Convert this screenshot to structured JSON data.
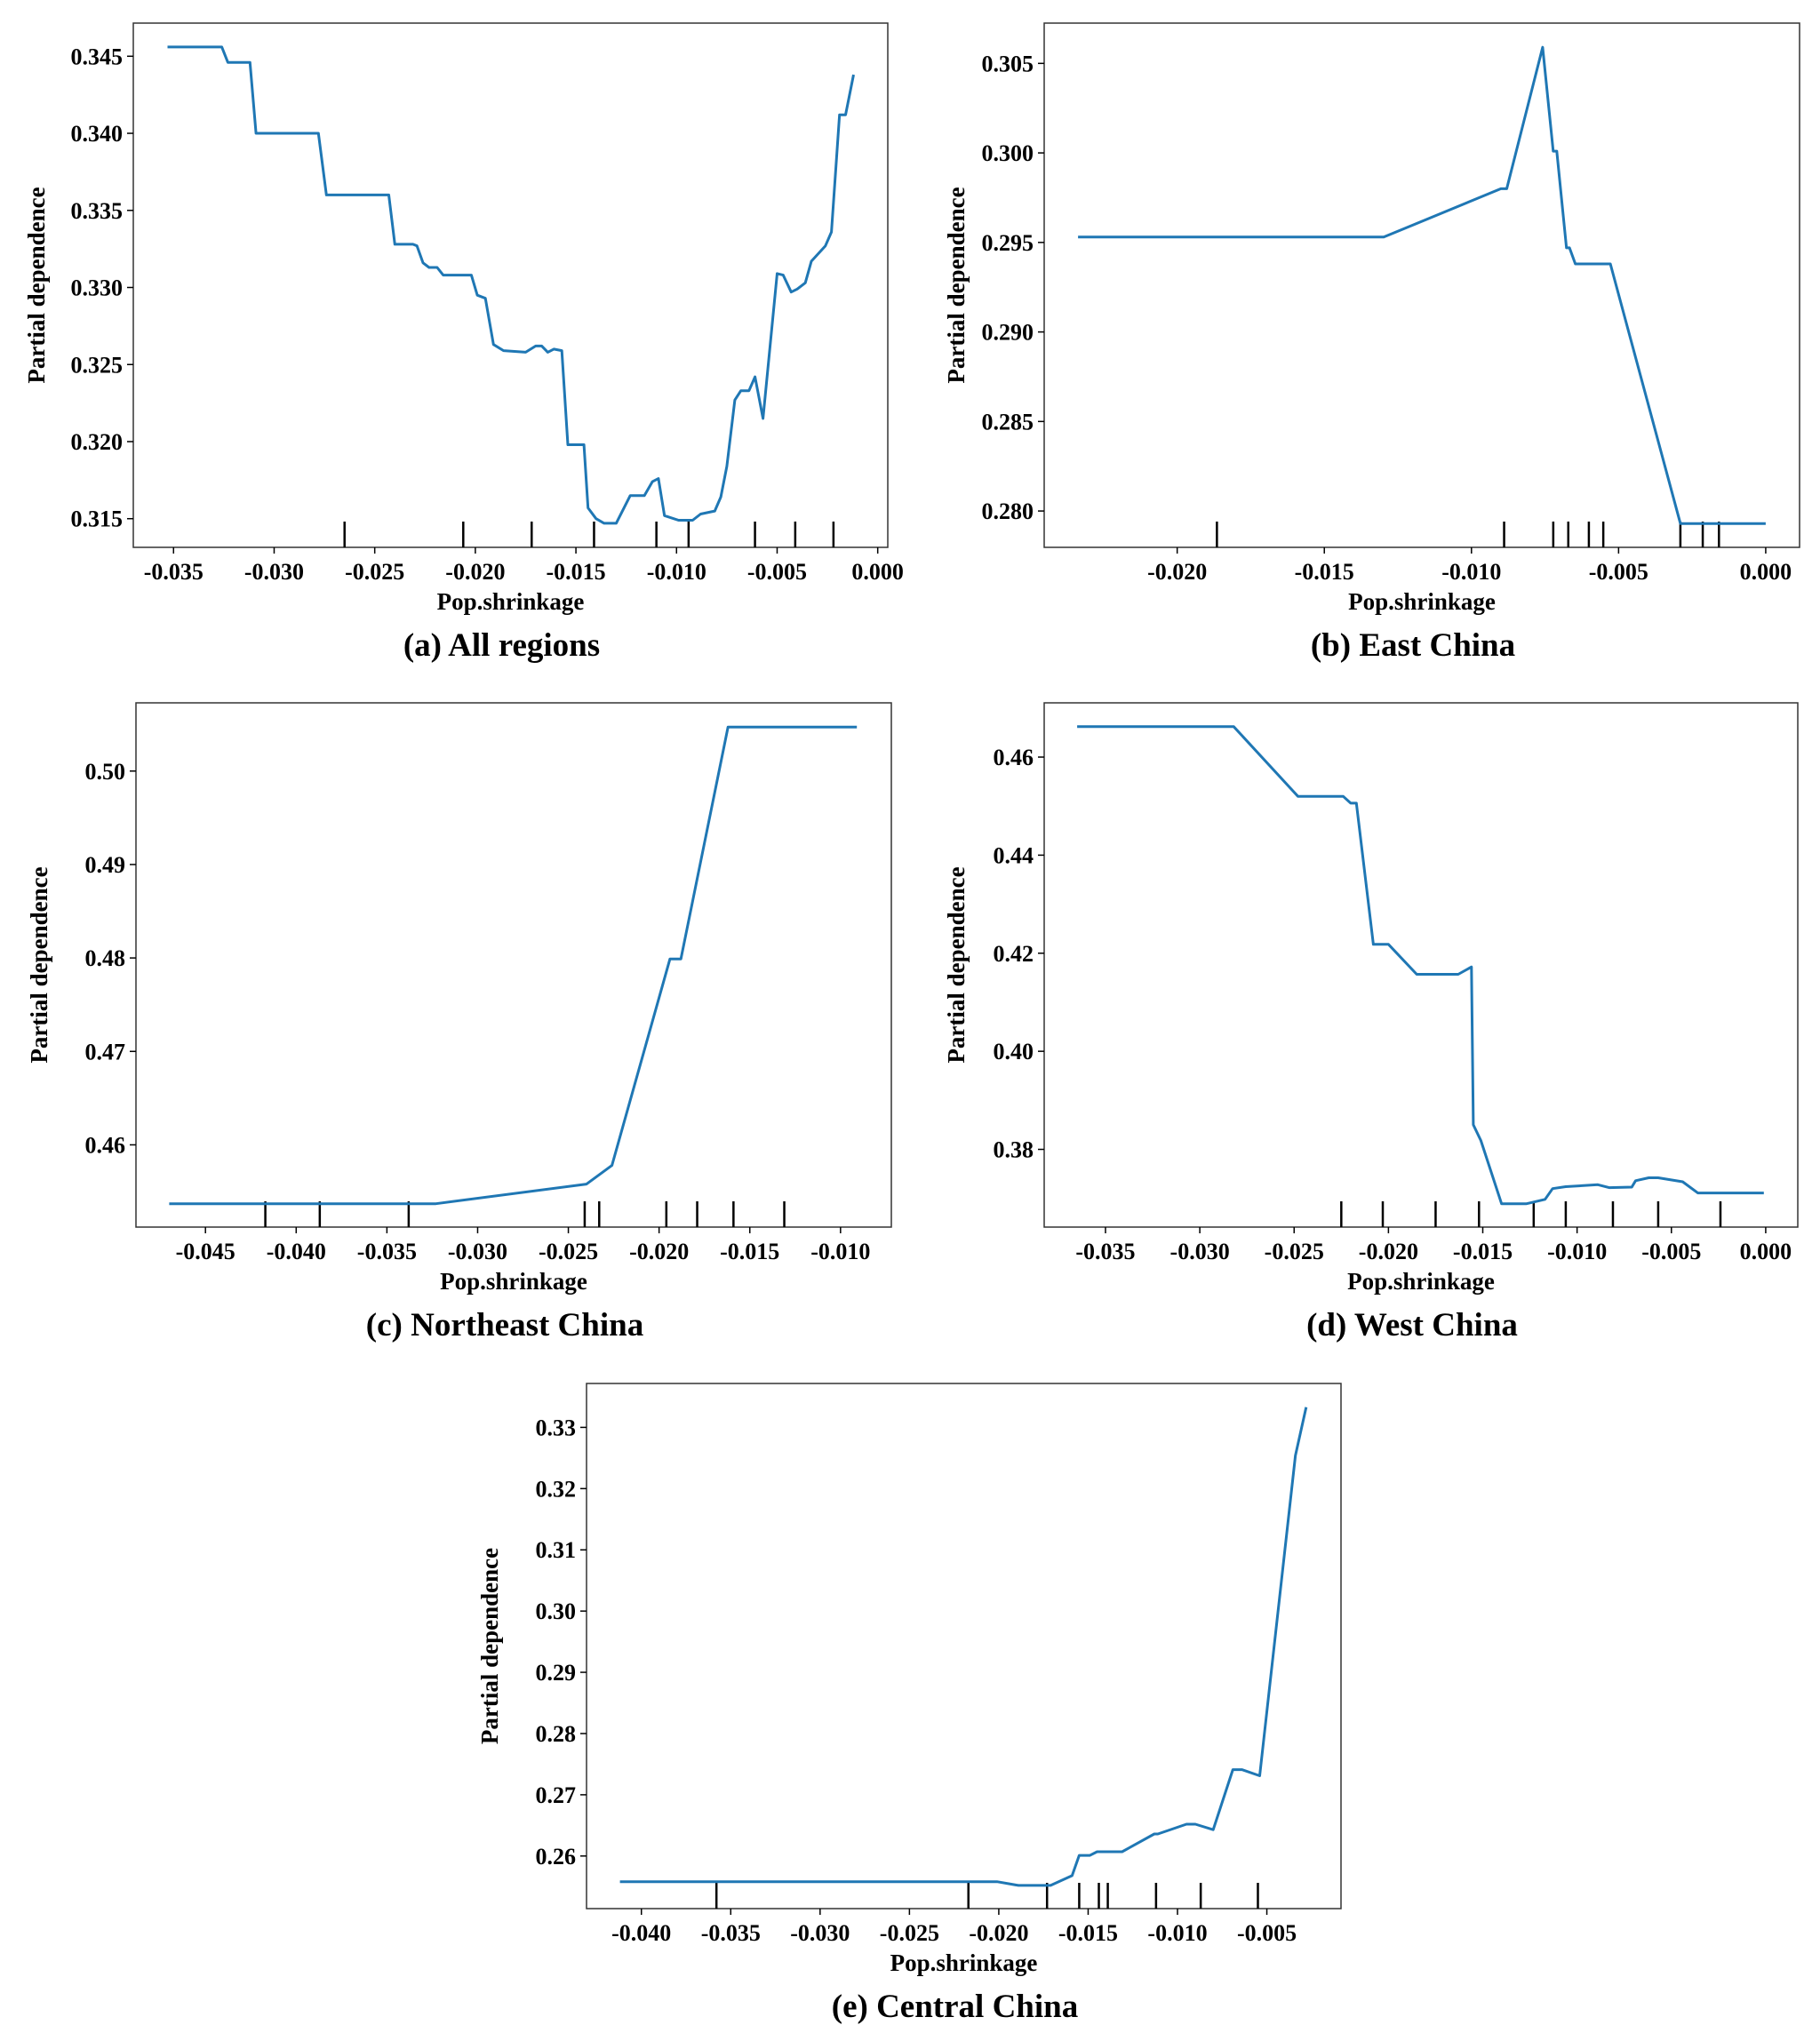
{
  "colors": {
    "line": "#1f77b4",
    "deciles": "#000000",
    "frame": "#333333"
  },
  "chart_data": [
    {
      "type": "line",
      "title": "(a) All regions",
      "xlabel": "Pop.shrinkage",
      "ylabel": "Partial dependence",
      "xlim": [
        -0.037,
        0.0005
      ],
      "ylim": [
        0.31314,
        0.34715
      ],
      "xticks": [
        "-0.035",
        "-0.030",
        "-0.025",
        "-0.020",
        "-0.015",
        "-0.010",
        "-0.005",
        "0.000"
      ],
      "xtick_values": [
        -0.035,
        -0.03,
        -0.025,
        -0.02,
        -0.015,
        -0.01,
        -0.005,
        0.0
      ],
      "yticks": [
        "0.315",
        "0.320",
        "0.325",
        "0.330",
        "0.335",
        "0.340",
        "0.345"
      ],
      "ytick_values": [
        0.315,
        0.32,
        0.325,
        0.33,
        0.335,
        0.34,
        0.345
      ],
      "grid": false,
      "x": [
        -0.0353,
        -0.0326,
        -0.0323,
        -0.0312,
        -0.0309,
        -0.0278,
        -0.0274,
        -0.0243,
        -0.024,
        -0.0231,
        -0.0229,
        -0.0226,
        -0.0223,
        -0.0219,
        -0.0216,
        -0.0202,
        -0.0199,
        -0.0195,
        -0.0191,
        -0.0186,
        -0.0175,
        -0.017,
        -0.0167,
        -0.0164,
        -0.0161,
        -0.0157,
        -0.0154,
        -0.0146,
        -0.0144,
        -0.014,
        -0.0136,
        -0.013,
        -0.0123,
        -0.0116,
        -0.0112,
        -0.0109,
        -0.0106,
        -0.0099,
        -0.0092,
        -0.0088,
        -0.0081,
        -0.0078,
        -0.0075,
        -0.0071,
        -0.0068,
        -0.0064,
        -0.0061,
        -0.0057,
        -0.005,
        -0.0047,
        -0.0043,
        -0.004,
        -0.0036,
        -0.0033,
        -0.0026,
        -0.0023,
        -0.0019,
        -0.0016,
        -0.0012
      ],
      "y": [
        0.3456,
        0.3456,
        0.3446,
        0.3446,
        0.34,
        0.34,
        0.336,
        0.336,
        0.3328,
        0.3328,
        0.3327,
        0.3316,
        0.3313,
        0.3313,
        0.3308,
        0.3308,
        0.3295,
        0.3293,
        0.3263,
        0.3259,
        0.3258,
        0.3262,
        0.3262,
        0.3258,
        0.326,
        0.3259,
        0.3198,
        0.3198,
        0.3157,
        0.315,
        0.3147,
        0.3147,
        0.3165,
        0.3165,
        0.3174,
        0.3176,
        0.3152,
        0.3149,
        0.3149,
        0.3153,
        0.3155,
        0.3164,
        0.3184,
        0.3227,
        0.3233,
        0.3233,
        0.3242,
        0.3215,
        0.3309,
        0.3308,
        0.3297,
        0.3299,
        0.3303,
        0.3317,
        0.3327,
        0.3336,
        0.3412,
        0.3412,
        0.3438
      ],
      "deciles": [
        -0.0265,
        -0.0206,
        -0.0172,
        -0.0141,
        -0.011,
        -0.0094,
        -0.0061,
        -0.0041,
        -0.0022
      ]
    },
    {
      "type": "line",
      "title": "(b) East China",
      "xlabel": "Pop.shrinkage",
      "ylabel": "Partial dependence",
      "xlim": [
        -0.02452,
        0.00115
      ],
      "ylim": [
        0.27797,
        0.30725
      ],
      "xticks": [
        "-0.020",
        "-0.015",
        "-0.010",
        "-0.005",
        "0.000"
      ],
      "xtick_values": [
        -0.02,
        -0.015,
        -0.01,
        -0.005,
        0.0
      ],
      "yticks": [
        "0.280",
        "0.285",
        "0.290",
        "0.295",
        "0.300",
        "0.305"
      ],
      "ytick_values": [
        0.28,
        0.285,
        0.29,
        0.295,
        0.3,
        0.305
      ],
      "grid": false,
      "x": [
        -0.02337,
        -0.01298,
        -0.009,
        -0.0088,
        -0.00758,
        -0.00722,
        -0.0071,
        -0.00677,
        -0.00667,
        -0.00647,
        -0.00528,
        -0.0029,
        0.0
      ],
      "y": [
        0.2953,
        0.2953,
        0.298,
        0.298,
        0.3059,
        0.3001,
        0.3001,
        0.2947,
        0.2947,
        0.2938,
        0.2938,
        0.2793,
        0.2793
      ],
      "deciles": [
        -0.01865,
        -0.00889,
        -0.00722,
        -0.00671,
        -0.00601,
        -0.00552,
        -0.0029,
        -0.00214,
        -0.00159
      ]
    },
    {
      "type": "line",
      "title": "(c) Northeast China",
      "xlabel": "Pop.shrinkage",
      "ylabel": "Partial dependence",
      "xlim": [
        -0.04883,
        -0.0072
      ],
      "ylim": [
        0.4512,
        0.5073
      ],
      "xticks": [
        "-0.045",
        "-0.040",
        "-0.035",
        "-0.030",
        "-0.025",
        "-0.020",
        "-0.015",
        "-0.010"
      ],
      "xtick_values": [
        -0.045,
        -0.04,
        -0.035,
        -0.03,
        -0.025,
        -0.02,
        -0.015,
        -0.01
      ],
      "yticks": [
        "0.46",
        "0.47",
        "0.48",
        "0.49",
        "0.50"
      ],
      "ytick_values": [
        0.46,
        0.47,
        0.48,
        0.49,
        0.5
      ],
      "grid": false,
      "x": [
        -0.047,
        -0.0323,
        -0.024,
        -0.0226,
        -0.0194,
        -0.0188,
        -0.0162,
        -0.0091
      ],
      "y": [
        0.4537,
        0.4537,
        0.4558,
        0.4578,
        0.4799,
        0.4799,
        0.5047,
        0.5047
      ],
      "deciles": [
        -0.0417,
        -0.0387,
        -0.0338,
        -0.0241,
        -0.0233,
        -0.0196,
        -0.0179,
        -0.0159,
        -0.0131
      ]
    },
    {
      "type": "line",
      "title": "(d) West China",
      "xlabel": "Pop.shrinkage",
      "ylabel": "Partial dependence",
      "xlim": [
        -0.03825,
        0.0017
      ],
      "ylim": [
        0.36415,
        0.47106
      ],
      "xticks": [
        "-0.035",
        "-0.030",
        "-0.025",
        "-0.020",
        "-0.015",
        "-0.010",
        "-0.005",
        "0.000"
      ],
      "xtick_values": [
        -0.035,
        -0.03,
        -0.025,
        -0.02,
        -0.015,
        -0.01,
        -0.005,
        0.0
      ],
      "yticks": [
        "0.38",
        "0.40",
        "0.42",
        "0.44",
        "0.46"
      ],
      "ytick_values": [
        0.38,
        0.4,
        0.42,
        0.44,
        0.46
      ],
      "grid": false,
      "x": [
        -0.0365,
        -0.0282,
        -0.0248,
        -0.0224,
        -0.022,
        -0.0217,
        -0.0208,
        -0.02,
        -0.0185,
        -0.0163,
        -0.0156,
        -0.0155,
        -0.0151,
        -0.014,
        -0.0127,
        -0.0117,
        -0.0113,
        -0.0106,
        -0.0089,
        -0.0083,
        -0.0071,
        -0.0069,
        -0.0062,
        -0.0057,
        -0.0044,
        -0.0036,
        -0.0001
      ],
      "y": [
        0.4662,
        0.4662,
        0.452,
        0.452,
        0.4506,
        0.4506,
        0.4218,
        0.4218,
        0.4157,
        0.4157,
        0.4172,
        0.385,
        0.3818,
        0.3689,
        0.3689,
        0.3698,
        0.372,
        0.3724,
        0.3728,
        0.3722,
        0.3723,
        0.3736,
        0.3742,
        0.3742,
        0.3734,
        0.3711,
        0.3711
      ],
      "deciles": [
        -0.0225,
        -0.0203,
        -0.0175,
        -0.0152,
        -0.0123,
        -0.0106,
        -0.0081,
        -0.0057,
        -0.0024
      ]
    },
    {
      "type": "line",
      "title": "(e) Central China",
      "xlabel": "Pop.shrinkage",
      "ylabel": "Partial dependence",
      "xlim": [
        -0.04307,
        -0.00085
      ],
      "ylim": [
        0.25141,
        0.33717
      ],
      "xticks": [
        "-0.040",
        "-0.035",
        "-0.030",
        "-0.025",
        "-0.020",
        "-0.015",
        "-0.010",
        "-0.005"
      ],
      "xtick_values": [
        -0.04,
        -0.035,
        -0.03,
        -0.025,
        -0.02,
        -0.015,
        -0.01,
        -0.005
      ],
      "yticks": [
        "0.26",
        "0.27",
        "0.28",
        "0.29",
        "0.30",
        "0.31",
        "0.32",
        "0.33"
      ],
      "ytick_values": [
        0.26,
        0.27,
        0.28,
        0.29,
        0.3,
        0.31,
        0.32,
        0.33
      ],
      "grid": false,
      "x": [
        -0.0412,
        -0.0201,
        -0.0189,
        -0.0171,
        -0.0159,
        -0.0155,
        -0.0149,
        -0.0145,
        -0.0131,
        -0.0113,
        -0.0111,
        -0.0095,
        -0.009,
        -0.008,
        -0.0069,
        -0.0064,
        -0.0054,
        -0.0034,
        -0.0028
      ],
      "y": [
        0.2558,
        0.2558,
        0.2552,
        0.2552,
        0.2568,
        0.2601,
        0.2601,
        0.2607,
        0.2607,
        0.2636,
        0.2636,
        0.2652,
        0.2652,
        0.2643,
        0.2741,
        0.2741,
        0.2731,
        0.3254,
        0.3333
      ],
      "deciles": [
        -0.0358,
        -0.0217,
        -0.0173,
        -0.0155,
        -0.0144,
        -0.0139,
        -0.0112,
        -0.0087,
        -0.0055
      ]
    }
  ]
}
